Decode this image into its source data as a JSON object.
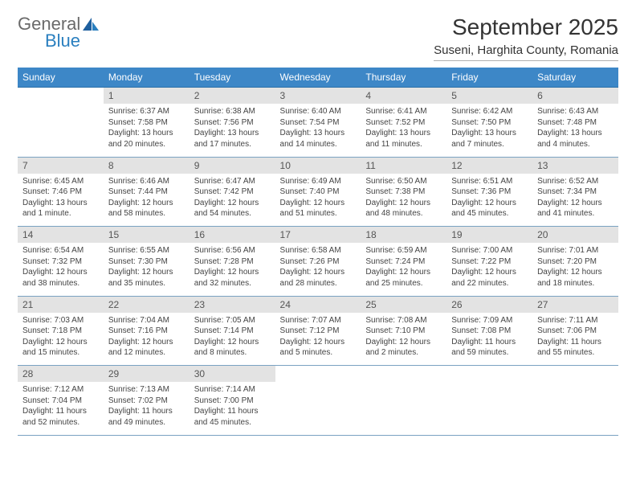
{
  "brand": {
    "general": "General",
    "blue": "Blue"
  },
  "title": "September 2025",
  "location": "Suseni, Harghita County, Romania",
  "colors": {
    "header_bg": "#3d87c7",
    "header_text": "#ffffff",
    "daynum_bg": "#e3e3e3",
    "row_border": "#7aa2c2",
    "logo_gray": "#6a6a6a",
    "logo_blue": "#2a7fbf"
  },
  "fonts": {
    "title_size": 28,
    "location_size": 15,
    "dayhead_size": 12,
    "daynum_size": 12,
    "cell_size": 10
  },
  "day_headers": [
    "Sunday",
    "Monday",
    "Tuesday",
    "Wednesday",
    "Thursday",
    "Friday",
    "Saturday"
  ],
  "weeks": [
    {
      "numbers": [
        "",
        "1",
        "2",
        "3",
        "4",
        "5",
        "6"
      ],
      "cells": [
        {
          "empty": true
        },
        {
          "sunrise": "Sunrise: 6:37 AM",
          "sunset": "Sunset: 7:58 PM",
          "daylight1": "Daylight: 13 hours",
          "daylight2": "and 20 minutes."
        },
        {
          "sunrise": "Sunrise: 6:38 AM",
          "sunset": "Sunset: 7:56 PM",
          "daylight1": "Daylight: 13 hours",
          "daylight2": "and 17 minutes."
        },
        {
          "sunrise": "Sunrise: 6:40 AM",
          "sunset": "Sunset: 7:54 PM",
          "daylight1": "Daylight: 13 hours",
          "daylight2": "and 14 minutes."
        },
        {
          "sunrise": "Sunrise: 6:41 AM",
          "sunset": "Sunset: 7:52 PM",
          "daylight1": "Daylight: 13 hours",
          "daylight2": "and 11 minutes."
        },
        {
          "sunrise": "Sunrise: 6:42 AM",
          "sunset": "Sunset: 7:50 PM",
          "daylight1": "Daylight: 13 hours",
          "daylight2": "and 7 minutes."
        },
        {
          "sunrise": "Sunrise: 6:43 AM",
          "sunset": "Sunset: 7:48 PM",
          "daylight1": "Daylight: 13 hours",
          "daylight2": "and 4 minutes."
        }
      ]
    },
    {
      "numbers": [
        "7",
        "8",
        "9",
        "10",
        "11",
        "12",
        "13"
      ],
      "cells": [
        {
          "sunrise": "Sunrise: 6:45 AM",
          "sunset": "Sunset: 7:46 PM",
          "daylight1": "Daylight: 13 hours",
          "daylight2": "and 1 minute."
        },
        {
          "sunrise": "Sunrise: 6:46 AM",
          "sunset": "Sunset: 7:44 PM",
          "daylight1": "Daylight: 12 hours",
          "daylight2": "and 58 minutes."
        },
        {
          "sunrise": "Sunrise: 6:47 AM",
          "sunset": "Sunset: 7:42 PM",
          "daylight1": "Daylight: 12 hours",
          "daylight2": "and 54 minutes."
        },
        {
          "sunrise": "Sunrise: 6:49 AM",
          "sunset": "Sunset: 7:40 PM",
          "daylight1": "Daylight: 12 hours",
          "daylight2": "and 51 minutes."
        },
        {
          "sunrise": "Sunrise: 6:50 AM",
          "sunset": "Sunset: 7:38 PM",
          "daylight1": "Daylight: 12 hours",
          "daylight2": "and 48 minutes."
        },
        {
          "sunrise": "Sunrise: 6:51 AM",
          "sunset": "Sunset: 7:36 PM",
          "daylight1": "Daylight: 12 hours",
          "daylight2": "and 45 minutes."
        },
        {
          "sunrise": "Sunrise: 6:52 AM",
          "sunset": "Sunset: 7:34 PM",
          "daylight1": "Daylight: 12 hours",
          "daylight2": "and 41 minutes."
        }
      ]
    },
    {
      "numbers": [
        "14",
        "15",
        "16",
        "17",
        "18",
        "19",
        "20"
      ],
      "cells": [
        {
          "sunrise": "Sunrise: 6:54 AM",
          "sunset": "Sunset: 7:32 PM",
          "daylight1": "Daylight: 12 hours",
          "daylight2": "and 38 minutes."
        },
        {
          "sunrise": "Sunrise: 6:55 AM",
          "sunset": "Sunset: 7:30 PM",
          "daylight1": "Daylight: 12 hours",
          "daylight2": "and 35 minutes."
        },
        {
          "sunrise": "Sunrise: 6:56 AM",
          "sunset": "Sunset: 7:28 PM",
          "daylight1": "Daylight: 12 hours",
          "daylight2": "and 32 minutes."
        },
        {
          "sunrise": "Sunrise: 6:58 AM",
          "sunset": "Sunset: 7:26 PM",
          "daylight1": "Daylight: 12 hours",
          "daylight2": "and 28 minutes."
        },
        {
          "sunrise": "Sunrise: 6:59 AM",
          "sunset": "Sunset: 7:24 PM",
          "daylight1": "Daylight: 12 hours",
          "daylight2": "and 25 minutes."
        },
        {
          "sunrise": "Sunrise: 7:00 AM",
          "sunset": "Sunset: 7:22 PM",
          "daylight1": "Daylight: 12 hours",
          "daylight2": "and 22 minutes."
        },
        {
          "sunrise": "Sunrise: 7:01 AM",
          "sunset": "Sunset: 7:20 PM",
          "daylight1": "Daylight: 12 hours",
          "daylight2": "and 18 minutes."
        }
      ]
    },
    {
      "numbers": [
        "21",
        "22",
        "23",
        "24",
        "25",
        "26",
        "27"
      ],
      "cells": [
        {
          "sunrise": "Sunrise: 7:03 AM",
          "sunset": "Sunset: 7:18 PM",
          "daylight1": "Daylight: 12 hours",
          "daylight2": "and 15 minutes."
        },
        {
          "sunrise": "Sunrise: 7:04 AM",
          "sunset": "Sunset: 7:16 PM",
          "daylight1": "Daylight: 12 hours",
          "daylight2": "and 12 minutes."
        },
        {
          "sunrise": "Sunrise: 7:05 AM",
          "sunset": "Sunset: 7:14 PM",
          "daylight1": "Daylight: 12 hours",
          "daylight2": "and 8 minutes."
        },
        {
          "sunrise": "Sunrise: 7:07 AM",
          "sunset": "Sunset: 7:12 PM",
          "daylight1": "Daylight: 12 hours",
          "daylight2": "and 5 minutes."
        },
        {
          "sunrise": "Sunrise: 7:08 AM",
          "sunset": "Sunset: 7:10 PM",
          "daylight1": "Daylight: 12 hours",
          "daylight2": "and 2 minutes."
        },
        {
          "sunrise": "Sunrise: 7:09 AM",
          "sunset": "Sunset: 7:08 PM",
          "daylight1": "Daylight: 11 hours",
          "daylight2": "and 59 minutes."
        },
        {
          "sunrise": "Sunrise: 7:11 AM",
          "sunset": "Sunset: 7:06 PM",
          "daylight1": "Daylight: 11 hours",
          "daylight2": "and 55 minutes."
        }
      ]
    },
    {
      "numbers": [
        "28",
        "29",
        "30",
        "",
        "",
        "",
        ""
      ],
      "cells": [
        {
          "sunrise": "Sunrise: 7:12 AM",
          "sunset": "Sunset: 7:04 PM",
          "daylight1": "Daylight: 11 hours",
          "daylight2": "and 52 minutes."
        },
        {
          "sunrise": "Sunrise: 7:13 AM",
          "sunset": "Sunset: 7:02 PM",
          "daylight1": "Daylight: 11 hours",
          "daylight2": "and 49 minutes."
        },
        {
          "sunrise": "Sunrise: 7:14 AM",
          "sunset": "Sunset: 7:00 PM",
          "daylight1": "Daylight: 11 hours",
          "daylight2": "and 45 minutes."
        },
        {
          "empty": true
        },
        {
          "empty": true
        },
        {
          "empty": true
        },
        {
          "empty": true
        }
      ]
    }
  ]
}
